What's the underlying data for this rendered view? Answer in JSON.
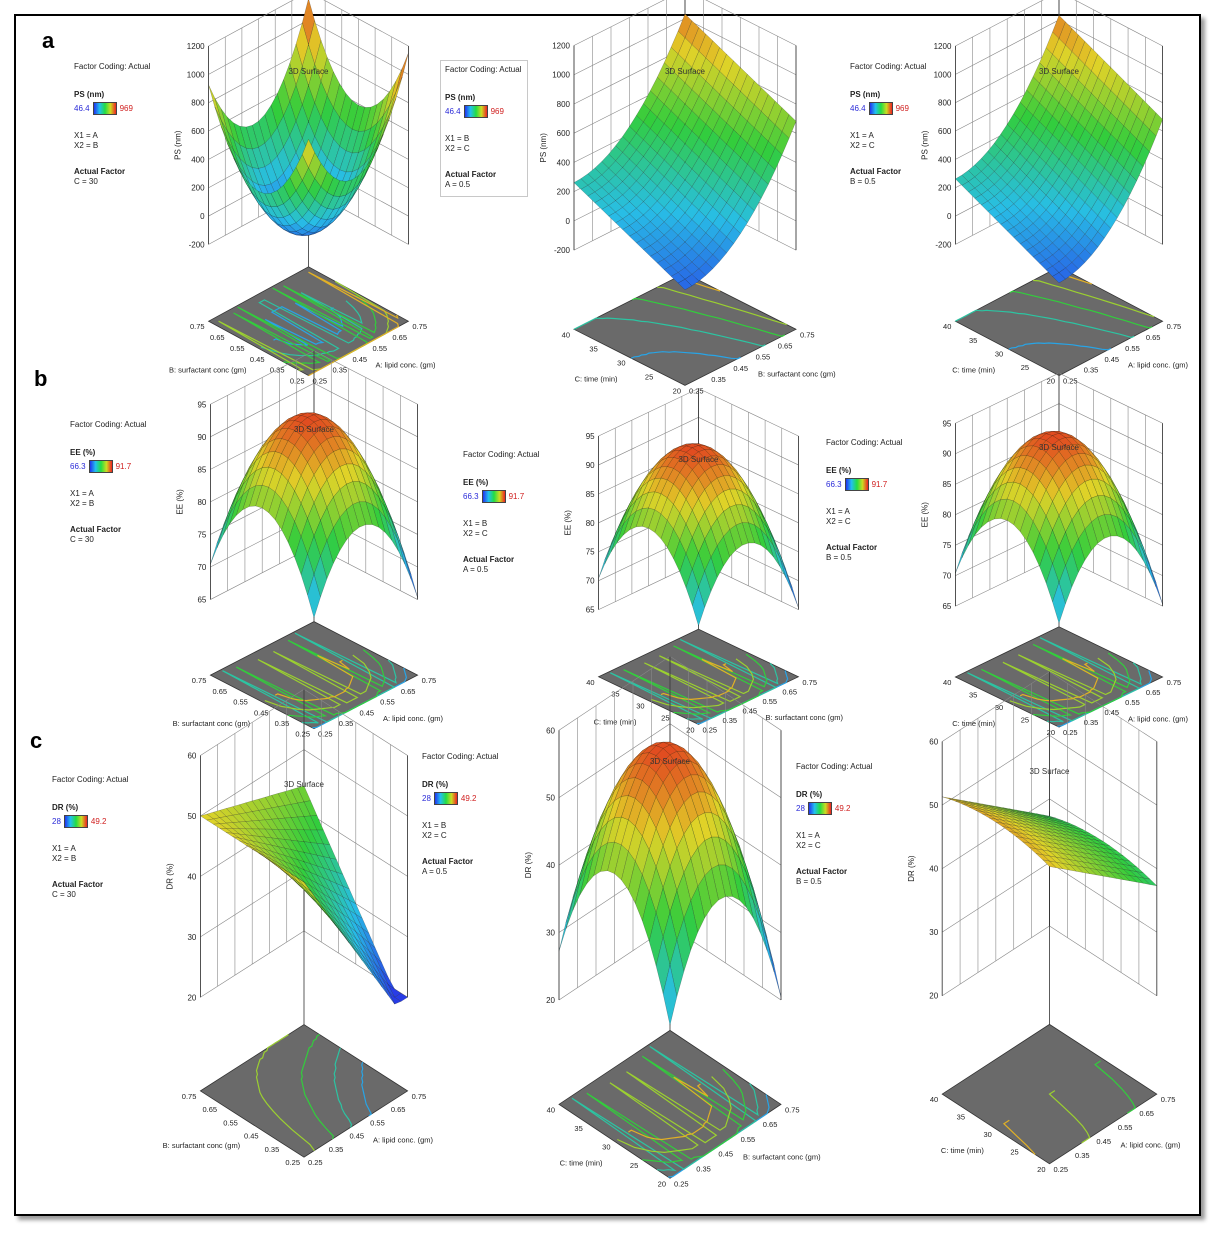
{
  "row_labels": [
    "a",
    "b",
    "c"
  ],
  "chart_data": [
    {
      "type": "surface",
      "row": "a",
      "col": 0,
      "title": "3D Surface",
      "legend": {
        "coding": "Factor Coding: Actual",
        "response": "PS (nm)",
        "low": "46.4",
        "high": "969",
        "x1": "X1 = A",
        "x2": "X2 = B",
        "actual_label": "Actual Factor",
        "actual_value": "C = 30"
      },
      "zlabel": "PS (nm)",
      "zticks": [
        "1200",
        "1000",
        "800",
        "600",
        "400",
        "200",
        "0",
        "-200"
      ],
      "xlabel": "A: lipid conc. (gm)",
      "xticks": [
        "0.25",
        "0.35",
        "0.45",
        "0.55",
        "0.65",
        "0.75"
      ],
      "ylabel": "B: surfactant conc (gm)",
      "yticks": [
        "0.25",
        "0.35",
        "0.45",
        "0.55",
        "0.65",
        "0.75"
      ],
      "shape": "bowl"
    },
    {
      "type": "surface",
      "row": "a",
      "col": 1,
      "title": "3D Surface",
      "legend": {
        "coding": "Factor Coding: Actual",
        "response": "PS (nm)",
        "low": "46.4",
        "high": "969",
        "x1": "X1 = B",
        "x2": "X2 = C",
        "actual_label": "Actual Factor",
        "actual_value": "A = 0.5"
      },
      "zlabel": "PS (nm)",
      "zticks": [
        "1200",
        "1000",
        "800",
        "600",
        "400",
        "200",
        "0",
        "-200"
      ],
      "xlabel": "B: surfactant conc (gm)",
      "xticks": [
        "0.25",
        "0.35",
        "0.45",
        "0.55",
        "0.65",
        "0.75"
      ],
      "ylabel": "C: time (min)",
      "yticks": [
        "20",
        "25",
        "30",
        "35",
        "40"
      ],
      "shape": "rising"
    },
    {
      "type": "surface",
      "row": "a",
      "col": 2,
      "title": "3D Surface",
      "legend": {
        "coding": "Factor Coding: Actual",
        "response": "PS (nm)",
        "low": "46.4",
        "high": "969",
        "x1": "X1 = A",
        "x2": "X2 = C",
        "actual_label": "Actual Factor",
        "actual_value": "B = 0.5"
      },
      "zlabel": "PS (nm)",
      "zticks": [
        "1200",
        "1000",
        "800",
        "600",
        "400",
        "200",
        "0",
        "-200"
      ],
      "xlabel": "A: lipid conc. (gm)",
      "xticks": [
        "0.25",
        "0.35",
        "0.45",
        "0.55",
        "0.65",
        "0.75"
      ],
      "ylabel": "C: time (min)",
      "yticks": [
        "20",
        "25",
        "30",
        "35",
        "40"
      ],
      "shape": "rising"
    },
    {
      "type": "surface",
      "row": "b",
      "col": 0,
      "title": "3D Surface",
      "legend": {
        "coding": "Factor Coding: Actual",
        "response": "EE (%)",
        "low": "66.3",
        "high": "91.7",
        "x1": "X1 = A",
        "x2": "X2 = B",
        "actual_label": "Actual Factor",
        "actual_value": "C = 30"
      },
      "zlabel": "EE (%)",
      "zticks": [
        "95",
        "90",
        "85",
        "80",
        "75",
        "70",
        "65"
      ],
      "xlabel": "A: lipid conc. (gm)",
      "xticks": [
        "0.25",
        "0.35",
        "0.45",
        "0.55",
        "0.65",
        "0.75"
      ],
      "ylabel": "B: surfactant conc (gm)",
      "yticks": [
        "0.25",
        "0.35",
        "0.45",
        "0.55",
        "0.65",
        "0.75"
      ],
      "shape": "dome"
    },
    {
      "type": "surface",
      "row": "b",
      "col": 1,
      "title": "3D Surface",
      "legend": {
        "coding": "Factor Coding: Actual",
        "response": "EE (%)",
        "low": "66.3",
        "high": "91.7",
        "x1": "X1 = B",
        "x2": "X2 = C",
        "actual_label": "Actual Factor",
        "actual_value": "A = 0.5"
      },
      "zlabel": "EE (%)",
      "zticks": [
        "95",
        "90",
        "85",
        "80",
        "75",
        "70",
        "65"
      ],
      "xlabel": "B: surfactant conc (gm)",
      "xticks": [
        "0.25",
        "0.35",
        "0.45",
        "0.55",
        "0.65",
        "0.75"
      ],
      "ylabel": "C: time (min)",
      "yticks": [
        "20",
        "25",
        "30",
        "35",
        "40"
      ],
      "shape": "dome"
    },
    {
      "type": "surface",
      "row": "b",
      "col": 2,
      "title": "3D Surface",
      "legend": {
        "coding": "Factor Coding: Actual",
        "response": "EE (%)",
        "low": "66.3",
        "high": "91.7",
        "x1": "X1 = A",
        "x2": "X2 = C",
        "actual_label": "Actual Factor",
        "actual_value": "B = 0.5"
      },
      "zlabel": "EE (%)",
      "zticks": [
        "95",
        "90",
        "85",
        "80",
        "75",
        "70",
        "65"
      ],
      "xlabel": "A: lipid conc. (gm)",
      "xticks": [
        "0.25",
        "0.35",
        "0.45",
        "0.55",
        "0.65",
        "0.75"
      ],
      "ylabel": "C: time (min)",
      "yticks": [
        "20",
        "25",
        "30",
        "35",
        "40"
      ],
      "shape": "dome"
    },
    {
      "type": "surface",
      "row": "c",
      "col": 0,
      "title": "3D Surface",
      "legend": {
        "coding": "Factor Coding: Actual",
        "response": "DR (%)",
        "low": "28",
        "high": "49.2",
        "x1": "X1 = A",
        "x2": "X2 = B",
        "actual_label": "Actual Factor",
        "actual_value": "C = 30"
      },
      "zlabel": "DR (%)",
      "zticks": [
        "60",
        "50",
        "40",
        "30",
        "20"
      ],
      "xlabel": "A: lipid conc. (gm)",
      "xticks": [
        "0.25",
        "0.35",
        "0.45",
        "0.55",
        "0.65",
        "0.75"
      ],
      "ylabel": "B: surfactant conc (gm)",
      "yticks": [
        "0.25",
        "0.35",
        "0.45",
        "0.55",
        "0.65",
        "0.75"
      ],
      "shape": "saddle"
    },
    {
      "type": "surface",
      "row": "c",
      "col": 1,
      "title": "3D Surface",
      "legend": {
        "coding": "Factor Coding: Actual",
        "response": "DR (%)",
        "low": "28",
        "high": "49.2",
        "x1": "X1 = B",
        "x2": "X2 = C",
        "actual_label": "Actual Factor",
        "actual_value": "A = 0.5"
      },
      "zlabel": "DR (%)",
      "zticks": [
        "60",
        "50",
        "40",
        "30",
        "20"
      ],
      "xlabel": "B: surfactant conc (gm)",
      "xticks": [
        "0.25",
        "0.35",
        "0.45",
        "0.55",
        "0.65",
        "0.75"
      ],
      "ylabel": "C: time (min)",
      "yticks": [
        "20",
        "25",
        "30",
        "35",
        "40"
      ],
      "shape": "dome"
    },
    {
      "type": "surface",
      "row": "c",
      "col": 2,
      "title": "3D Surface",
      "legend": {
        "coding": "Factor Coding: Actual",
        "response": "DR (%)",
        "low": "28",
        "high": "49.2",
        "x1": "X1 = A",
        "x2": "X2 = C",
        "actual_label": "Actual Factor",
        "actual_value": "B = 0.5"
      },
      "zlabel": "DR (%)",
      "zticks": [
        "60",
        "50",
        "40",
        "30",
        "20"
      ],
      "xlabel": "A: lipid conc. (gm)",
      "xticks": [
        "0.25",
        "0.35",
        "0.45",
        "0.55",
        "0.65",
        "0.75"
      ],
      "ylabel": "C: time (min)",
      "yticks": [
        "20",
        "25",
        "30",
        "35",
        "40"
      ],
      "shape": "plateau"
    }
  ]
}
